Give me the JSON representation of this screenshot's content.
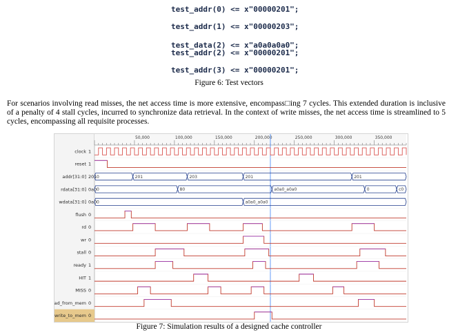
{
  "code_lines": [
    "test_addr(0) <= x\"00000201\";",
    "test_addr(1) <= x\"00000203\";",
    "test_data(2) <= x\"a0a0a0a0\";",
    "test_addr(2) <= x\"00000201\";",
    "test_addr(3) <= x\"00000201\";"
  ],
  "figure6_caption": "Figure 6: Test vectors",
  "paragraph": "For scenarios involving read misses, the net access time is more extensive, encompass□ing 7 cycles. This extended duration is inclusive of a penalty of 4 stall cycles, incurred to synchronize data retrieval. In the context of write misses, the net access time is streamlined to 5 cycles, encompassing all requisite processes.",
  "figure7_caption": "Figure 7: Simulation results of a designed cache controller",
  "waveform": {
    "time_ticks": [
      {
        "t": 50,
        "label": "50,000"
      },
      {
        "t": 100,
        "label": "100,000"
      },
      {
        "t": 150,
        "label": "150,000"
      },
      {
        "t": 200,
        "label": "200,000"
      },
      {
        "t": 250,
        "label": "250,000"
      },
      {
        "t": 300,
        "label": "300,000"
      },
      {
        "t": 350,
        "label": "350,000"
      }
    ],
    "t_max": 390,
    "cursor_t": 220,
    "clock_period": 10,
    "signals": [
      {
        "name": "clock",
        "value": "1",
        "kind": "clock",
        "color": "#d9534f"
      },
      {
        "name": "reset",
        "value": "1",
        "kind": "bit",
        "color": "#c0392b",
        "edges": [
          [
            0,
            1
          ],
          [
            16,
            0
          ]
        ]
      },
      {
        "name": "addr[31:0]",
        "value": "201",
        "kind": "bus",
        "color": "#1e3a8a",
        "segments": [
          {
            "t0": 0,
            "label": "0"
          },
          {
            "t0": 48,
            "label": "201"
          },
          {
            "t0": 116,
            "label": "203"
          },
          {
            "t0": 186,
            "label": "201"
          },
          {
            "t0": 322,
            "label": "201"
          }
        ]
      },
      {
        "name": "rdata[31:0]",
        "value": "0a0",
        "kind": "bus",
        "color": "#1e3a8a",
        "segments": [
          {
            "t0": 0,
            "label": "0"
          },
          {
            "t0": 104,
            "label": "80"
          },
          {
            "t0": 222,
            "label": "a0a0_a0a0"
          },
          {
            "t0": 338,
            "label": "0"
          },
          {
            "t0": 378,
            "label": "c0"
          }
        ]
      },
      {
        "name": "wdata[31:0]",
        "value": "0a0",
        "kind": "bus",
        "color": "#1e3a8a",
        "segments": [
          {
            "t0": 0,
            "label": "0"
          },
          {
            "t0": 186,
            "label": "a0a0_a0a0"
          }
        ]
      },
      {
        "name": "flush",
        "value": "0",
        "kind": "bit",
        "color": "#c0392b",
        "edges": [
          [
            0,
            0
          ],
          [
            38,
            1
          ],
          [
            46,
            0
          ]
        ]
      },
      {
        "name": "rd",
        "value": "0",
        "kind": "bit",
        "color": "#c0392b",
        "edges": [
          [
            0,
            0
          ],
          [
            48,
            1
          ],
          [
            76,
            0
          ],
          [
            116,
            1
          ],
          [
            144,
            0
          ],
          [
            186,
            1
          ],
          [
            210,
            0
          ],
          [
            322,
            1
          ],
          [
            350,
            0
          ]
        ]
      },
      {
        "name": "wr",
        "value": "0",
        "kind": "bit",
        "color": "#c0392b",
        "edges": [
          [
            0,
            0
          ],
          [
            186,
            1
          ],
          [
            212,
            0
          ]
        ]
      },
      {
        "name": "stall",
        "value": "0",
        "kind": "bit",
        "color": "#c0392b",
        "edges": [
          [
            0,
            0
          ],
          [
            76,
            1
          ],
          [
            112,
            0
          ],
          [
            188,
            1
          ],
          [
            218,
            0
          ],
          [
            332,
            1
          ],
          [
            364,
            0
          ]
        ]
      },
      {
        "name": "ready",
        "value": "1",
        "kind": "bit",
        "color": "#c0392b",
        "edges": [
          [
            0,
            0
          ],
          [
            76,
            1
          ],
          [
            98,
            0
          ],
          [
            198,
            1
          ],
          [
            214,
            0
          ],
          [
            328,
            1
          ],
          [
            356,
            0
          ]
        ]
      },
      {
        "name": "HIT",
        "value": "1",
        "kind": "bit",
        "color": "#c0392b",
        "edges": [
          [
            0,
            0
          ],
          [
            124,
            1
          ],
          [
            142,
            0
          ],
          [
            256,
            1
          ],
          [
            274,
            0
          ]
        ]
      },
      {
        "name": "MISS",
        "value": "0",
        "kind": "bit",
        "color": "#c0392b",
        "edges": [
          [
            0,
            0
          ],
          [
            54,
            1
          ],
          [
            70,
            0
          ],
          [
            142,
            1
          ],
          [
            158,
            0
          ],
          [
            196,
            1
          ],
          [
            212,
            0
          ],
          [
            298,
            1
          ],
          [
            312,
            0
          ]
        ]
      },
      {
        "name": "read_from_mem",
        "value": "0",
        "kind": "bit",
        "color": "#c0392b",
        "edges": [
          [
            0,
            0
          ],
          [
            62,
            1
          ],
          [
            96,
            0
          ],
          [
            330,
            1
          ],
          [
            350,
            0
          ]
        ]
      },
      {
        "name": "write_to_mem",
        "value": "0",
        "kind": "bit",
        "color": "#c0392b",
        "edges": [
          [
            0,
            0
          ],
          [
            200,
            1
          ],
          [
            222,
            0
          ]
        ],
        "highlight": true
      }
    ]
  }
}
